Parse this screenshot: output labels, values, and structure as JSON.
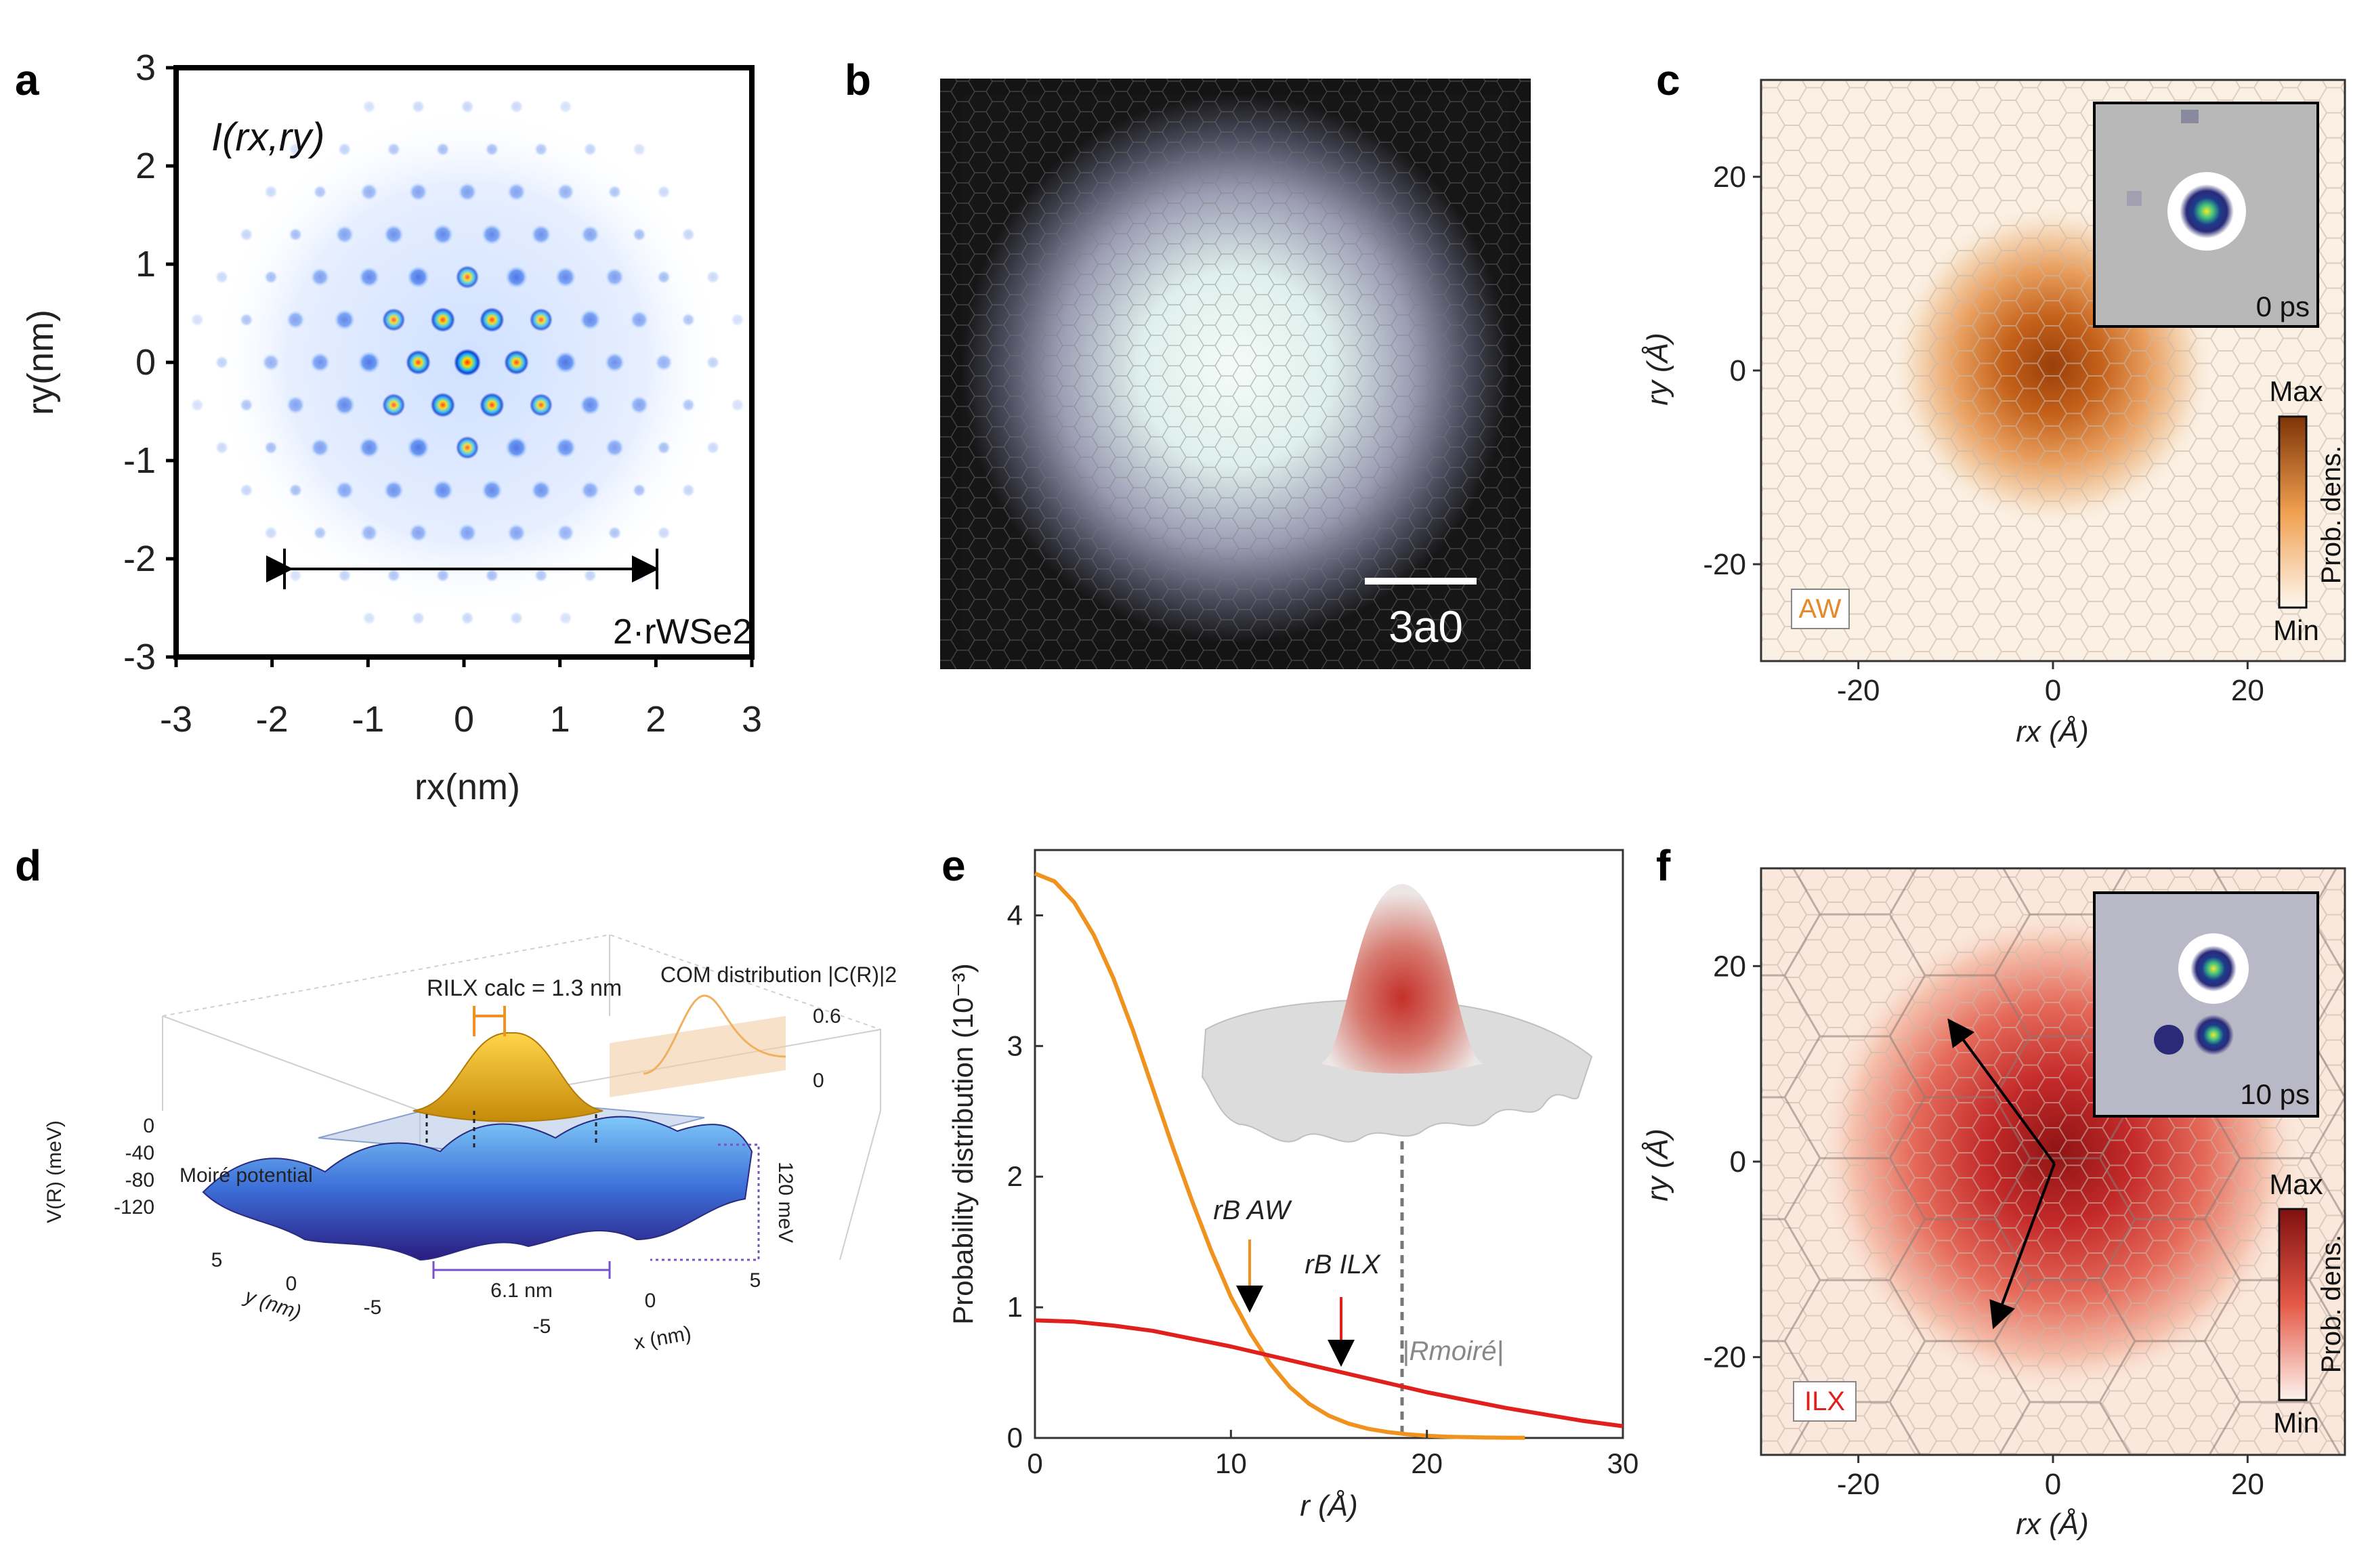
{
  "panels": {
    "a": {
      "letter": "a",
      "intensity_label": "I(rx,ry)",
      "distance_label": "2·rWSe2",
      "xlabel": "rx(nm)",
      "ylabel": "ry(nm)",
      "xticks": [
        "-3",
        "-2",
        "-1",
        "0",
        "1",
        "2",
        "3"
      ],
      "yticks": [
        "3",
        "2",
        "1",
        "0",
        "-1",
        "-2",
        "-3"
      ]
    },
    "b": {
      "letter": "b",
      "scalebar_label": "3a0"
    },
    "c": {
      "letter": "c",
      "xlabel": "rx (Å)",
      "ylabel": "ry (Å)",
      "xticks": [
        "-20",
        "0",
        "20"
      ],
      "yticks": [
        "20",
        "0",
        "-20"
      ],
      "inset_time": "0 ps",
      "colorbar_max": "Max",
      "colorbar_min": "Min",
      "colorbar_label": "Prob. dens.",
      "state_label": "AW"
    },
    "d": {
      "letter": "d",
      "radius_label": "RILX calc = 1.3 nm",
      "com_label": "COM distribution |C(R)|2",
      "com_ticks": [
        "0.6",
        "0"
      ],
      "v_axis_label": "V(R) (meV)",
      "v_ticks": [
        "0",
        "-40",
        "-80",
        "-120"
      ],
      "moire_label": "Moiré potential",
      "depth_label": "120 meV",
      "period_label": "6.1 nm",
      "y_axis_label": "y (nm)",
      "x_axis_label": "x (nm)",
      "y_ticks": [
        "5",
        "0",
        "-5"
      ],
      "x_ticks": [
        "-5",
        "0",
        "5"
      ]
    },
    "e": {
      "letter": "e",
      "label_aw": "rB AW",
      "label_ilx": "rB ILX",
      "label_moire": "|Rmoiré|"
    },
    "f": {
      "letter": "f",
      "xlabel": "rx (Å)",
      "ylabel": "ry (Å)",
      "xticks": [
        "-20",
        "0",
        "20"
      ],
      "yticks": [
        "20",
        "0",
        "-20"
      ],
      "inset_time": "10 ps",
      "colorbar_max": "Max",
      "colorbar_min": "Min",
      "colorbar_label": "Prob. dens.",
      "state_label": "ILX"
    }
  },
  "colors": {
    "aw_curve": "#f0921e",
    "ilx_curve": "#e0201c",
    "moire_line": "#777777",
    "orange_density": "#b5500f",
    "red_density": "#b51818"
  },
  "chart_data": [
    {
      "type": "line",
      "title": "",
      "xlabel": "r (Å)",
      "ylabel": "Probability distribution (10⁻³)",
      "xlim": [
        0,
        30
      ],
      "ylim": [
        0,
        4.5
      ],
      "xticks": [
        0,
        10,
        20,
        30
      ],
      "yticks": [
        0,
        1,
        2,
        3,
        4
      ],
      "series": [
        {
          "name": "AW",
          "color": "#f0921e",
          "x": [
            0,
            1,
            2,
            3,
            4,
            5,
            6,
            7,
            8,
            9,
            10,
            11,
            12,
            13,
            14,
            15,
            16,
            17,
            18,
            19,
            20,
            21,
            22,
            23,
            24,
            25
          ],
          "y": [
            4.32,
            4.26,
            4.1,
            3.85,
            3.52,
            3.12,
            2.68,
            2.24,
            1.82,
            1.43,
            1.08,
            0.8,
            0.57,
            0.39,
            0.26,
            0.17,
            0.11,
            0.07,
            0.045,
            0.028,
            0.017,
            0.01,
            0.006,
            0.003,
            0.002,
            0.001
          ]
        },
        {
          "name": "ILX",
          "color": "#e0201c",
          "x": [
            0,
            2,
            4,
            6,
            8,
            10,
            12,
            14,
            16,
            18,
            20,
            22,
            24,
            26,
            28,
            30
          ],
          "y": [
            0.9,
            0.89,
            0.86,
            0.82,
            0.76,
            0.7,
            0.63,
            0.56,
            0.49,
            0.42,
            0.35,
            0.29,
            0.23,
            0.18,
            0.13,
            0.09
          ]
        }
      ],
      "markers": [
        {
          "label": "rB AW",
          "x": 10.8
        },
        {
          "label": "rB ILX",
          "x": 15.5
        },
        {
          "label": "|Rmoiré|",
          "x": 18.7
        }
      ]
    }
  ]
}
